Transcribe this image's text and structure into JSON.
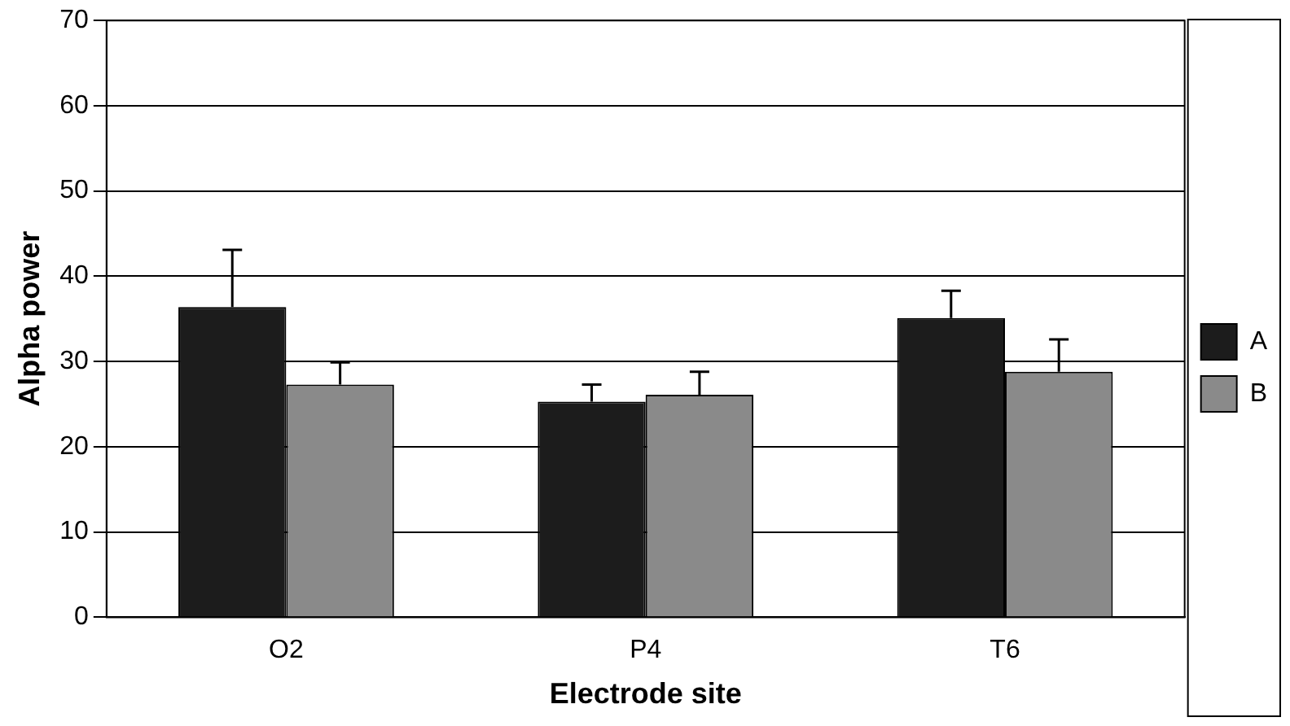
{
  "chart_data": {
    "type": "bar",
    "xlabel": "Electrode site",
    "ylabel": "Alpha power",
    "categories": [
      "O2",
      "P4",
      "T6"
    ],
    "series": [
      {
        "name": "A",
        "color": "#1c1c1c",
        "values": [
          36.4,
          25.3,
          35.1
        ],
        "errors": [
          [
            36.4,
            43.1
          ],
          [
            25.3,
            27.3
          ],
          [
            35.1,
            38.3
          ]
        ]
      },
      {
        "name": "B",
        "color": "#8a8a8a",
        "values": [
          27.3,
          26.1,
          28.8
        ],
        "errors": [
          [
            27.3,
            29.9
          ],
          [
            26.1,
            28.8
          ],
          [
            28.8,
            32.6
          ]
        ]
      }
    ],
    "ylim": [
      0,
      70
    ],
    "yticks": [
      0,
      10,
      20,
      30,
      40,
      50,
      60,
      70
    ],
    "grid": "y",
    "legend": "right"
  }
}
